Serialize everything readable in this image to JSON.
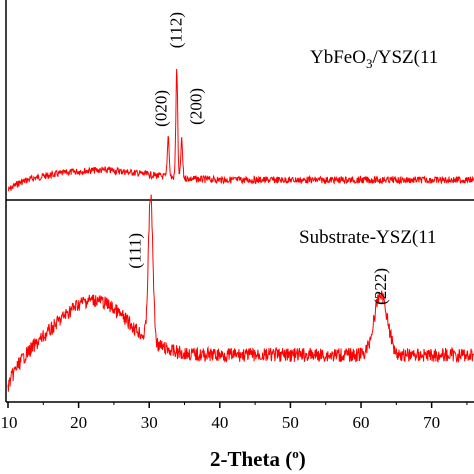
{
  "chart_data": [
    {
      "type": "line",
      "panel": "top",
      "annotation": "YbFeO₃/YSZ(11",
      "line_color": "#ff0000",
      "peaks": [
        {
          "x": 32.7,
          "label": "(020)",
          "rel_height": 0.38
        },
        {
          "x": 33.9,
          "label": "(112)",
          "rel_height": 1.0
        },
        {
          "x": 34.6,
          "label": "(200)",
          "rel_height": 0.35
        }
      ],
      "background_hump": {
        "center": 23,
        "width": 9,
        "rel_height": 0.09
      },
      "xlim": [
        10,
        76
      ]
    },
    {
      "type": "line",
      "panel": "bottom",
      "annotation": "Substrate-YSZ(11",
      "line_color": "#ff0000",
      "peaks": [
        {
          "x": 30.2,
          "label": "(111)",
          "rel_height": 1.0
        },
        {
          "x": 62.8,
          "label": "(222)",
          "rel_height": 0.42
        }
      ],
      "background_hump": {
        "center": 22,
        "width": 7,
        "rel_height": 0.38
      },
      "xlim": [
        10,
        76
      ]
    }
  ],
  "x_axis": {
    "label": "2-Theta (",
    "label_sup": "o",
    "label_close": ")",
    "ticks": [
      "10",
      "20",
      "30",
      "40",
      "50",
      "60",
      "70"
    ]
  }
}
